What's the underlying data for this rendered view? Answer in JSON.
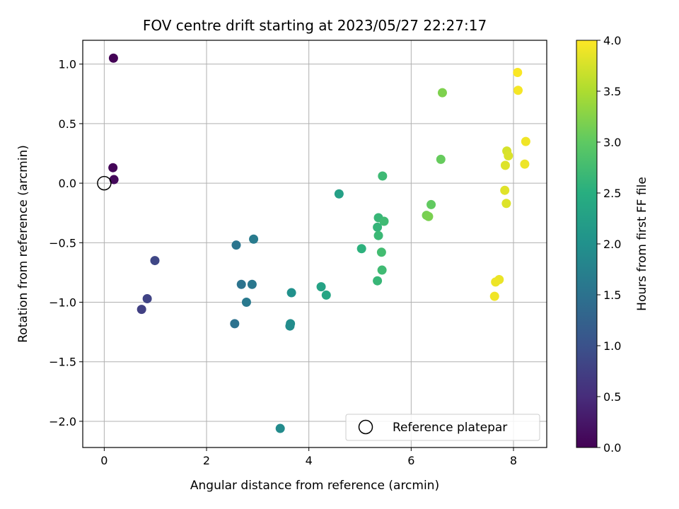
{
  "chart_data": {
    "type": "scatter",
    "title": "FOV centre drift starting at 2023/05/27 22:27:17",
    "xlabel": "Angular distance from reference (arcmin)",
    "ylabel": "Rotation from reference (arcmin)",
    "colorbar_label": "Hours from first FF file",
    "xlim": [
      -0.42,
      8.65
    ],
    "ylim": [
      -2.22,
      1.2
    ],
    "x_ticks": [
      0,
      2,
      4,
      6,
      8
    ],
    "y_ticks": [
      -2.0,
      -1.5,
      -1.0,
      -0.5,
      0.0,
      0.5,
      1.0
    ],
    "x_tick_labels": [
      "0",
      "2",
      "4",
      "6",
      "8"
    ],
    "y_tick_labels": [
      "−2.0",
      "−1.5",
      "−1.0",
      "−0.5",
      "0.0",
      "0.5",
      "1.0"
    ],
    "colorbar_range": [
      0.0,
      4.0
    ],
    "colorbar_ticks": [
      0.0,
      0.5,
      1.0,
      1.5,
      2.0,
      2.5,
      3.0,
      3.5,
      4.0
    ],
    "colorbar_tick_labels": [
      "0.0",
      "0.5",
      "1.0",
      "1.5",
      "2.0",
      "2.5",
      "3.0",
      "3.5",
      "4.0"
    ],
    "colormap": "viridis",
    "grid": true,
    "legend": {
      "position": "lower-right",
      "entries": [
        {
          "label": "Reference platepar",
          "marker": "open-circle"
        }
      ]
    },
    "reference_point": {
      "x": 0.0,
      "y": 0.0
    },
    "points": [
      {
        "x": 0.18,
        "y": 1.05,
        "hours": 0.02
      },
      {
        "x": 0.17,
        "y": 0.13,
        "hours": 0.05
      },
      {
        "x": 0.19,
        "y": 0.03,
        "hours": 0.08
      },
      {
        "x": 0.99,
        "y": -0.65,
        "hours": 0.85
      },
      {
        "x": 0.84,
        "y": -0.97,
        "hours": 0.8
      },
      {
        "x": 0.73,
        "y": -1.06,
        "hours": 0.75
      },
      {
        "x": 2.58,
        "y": -0.52,
        "hours": 1.55
      },
      {
        "x": 2.92,
        "y": -0.47,
        "hours": 1.65
      },
      {
        "x": 2.68,
        "y": -0.85,
        "hours": 1.52
      },
      {
        "x": 2.89,
        "y": -0.85,
        "hours": 1.58
      },
      {
        "x": 2.78,
        "y": -1.0,
        "hours": 1.62
      },
      {
        "x": 2.55,
        "y": -1.18,
        "hours": 1.5
      },
      {
        "x": 3.66,
        "y": -0.92,
        "hours": 2.0
      },
      {
        "x": 3.64,
        "y": -1.18,
        "hours": 1.95
      },
      {
        "x": 3.63,
        "y": -1.2,
        "hours": 1.92
      },
      {
        "x": 3.44,
        "y": -2.06,
        "hours": 1.9
      },
      {
        "x": 4.24,
        "y": -0.87,
        "hours": 2.3
      },
      {
        "x": 4.34,
        "y": -0.94,
        "hours": 2.35
      },
      {
        "x": 4.59,
        "y": -0.09,
        "hours": 2.25
      },
      {
        "x": 5.44,
        "y": 0.06,
        "hours": 2.7
      },
      {
        "x": 5.36,
        "y": -0.29,
        "hours": 2.65
      },
      {
        "x": 5.47,
        "y": -0.32,
        "hours": 2.72
      },
      {
        "x": 5.34,
        "y": -0.37,
        "hours": 2.62
      },
      {
        "x": 5.36,
        "y": -0.44,
        "hours": 2.68
      },
      {
        "x": 5.03,
        "y": -0.55,
        "hours": 2.55
      },
      {
        "x": 5.42,
        "y": -0.58,
        "hours": 2.75
      },
      {
        "x": 5.43,
        "y": -0.73,
        "hours": 2.72
      },
      {
        "x": 5.34,
        "y": -0.82,
        "hours": 2.65
      },
      {
        "x": 6.61,
        "y": 0.76,
        "hours": 3.2
      },
      {
        "x": 6.58,
        "y": 0.2,
        "hours": 3.05
      },
      {
        "x": 6.39,
        "y": -0.18,
        "hours": 3.02
      },
      {
        "x": 6.3,
        "y": -0.27,
        "hours": 3.15
      },
      {
        "x": 6.34,
        "y": -0.28,
        "hours": 3.18
      },
      {
        "x": 8.08,
        "y": 0.93,
        "hours": 3.98
      },
      {
        "x": 8.09,
        "y": 0.78,
        "hours": 3.95
      },
      {
        "x": 8.24,
        "y": 0.35,
        "hours": 3.92
      },
      {
        "x": 7.87,
        "y": 0.27,
        "hours": 3.75
      },
      {
        "x": 7.9,
        "y": 0.23,
        "hours": 3.78
      },
      {
        "x": 7.84,
        "y": 0.15,
        "hours": 3.8
      },
      {
        "x": 8.22,
        "y": 0.16,
        "hours": 3.9
      },
      {
        "x": 7.83,
        "y": -0.06,
        "hours": 3.82
      },
      {
        "x": 7.86,
        "y": -0.17,
        "hours": 3.8
      },
      {
        "x": 7.72,
        "y": -0.81,
        "hours": 3.88
      },
      {
        "x": 7.65,
        "y": -0.83,
        "hours": 3.9
      },
      {
        "x": 7.63,
        "y": -0.95,
        "hours": 3.92
      }
    ]
  }
}
